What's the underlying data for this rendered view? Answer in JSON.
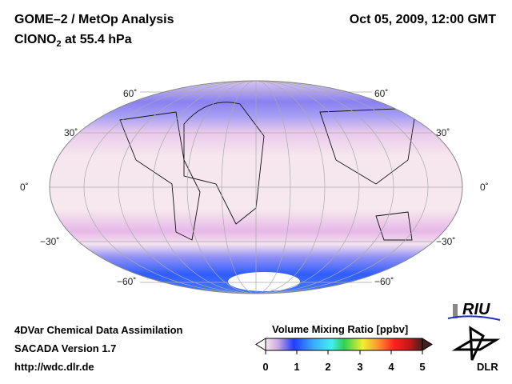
{
  "title": "GOME–2 / MetOp Analysis",
  "species_prefix": "ClONO",
  "species_sub": "2",
  "species_suffix": " at 55.4 hPa",
  "datetime": "Oct 05, 2009, 12:00 GMT",
  "footer": {
    "line1": "4DVar Chemical Data Assimilation",
    "line2": "SACADA Version 1.7",
    "line3": "http://wdc.dlr.de"
  },
  "colorbar": {
    "title": "Volume Mixing Ratio [ppbv]",
    "ticks": [
      "0",
      "1",
      "2",
      "3",
      "4",
      "5"
    ],
    "colors": [
      "#f5e8ee",
      "#c8a8e0",
      "#1f3cff",
      "#3aa8ff",
      "#40f0f0",
      "#30d050",
      "#f0f030",
      "#ff9030",
      "#ff2020",
      "#c01818",
      "#402020"
    ]
  },
  "lat_labels": {
    "n60": "60˚",
    "n30": "30˚",
    "eq": "0˚",
    "s30": "−30˚",
    "s60": "−60˚"
  },
  "logos": {
    "riu": "RIU",
    "dlr": "DLR"
  }
}
